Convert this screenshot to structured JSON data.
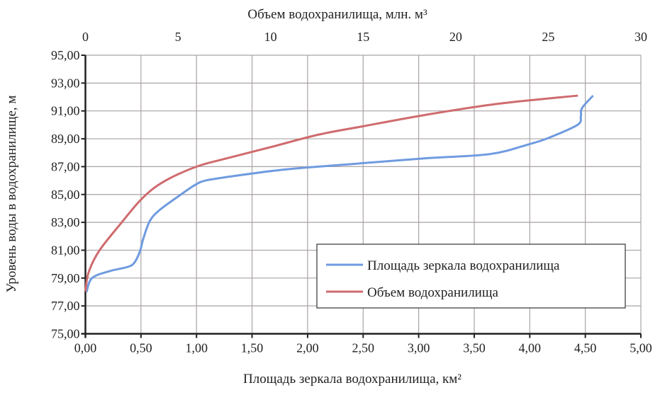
{
  "chart_data": {
    "type": "line",
    "xlabel_bottom": "Площадь зеркала водохранилища, км²",
    "xlabel_top": "Объем водохранилища, млн. м³",
    "ylabel": "Уровень воды в водохранилище, м",
    "xlim_bottom": [
      0,
      5
    ],
    "xlim_top": [
      0,
      30
    ],
    "ylim": [
      75,
      95
    ],
    "grid": true,
    "legend_position": "bottom-right",
    "x_ticks_bottom": [
      "0,00",
      "0,50",
      "1,00",
      "1,50",
      "2,00",
      "2,50",
      "3,00",
      "3,50",
      "4,00",
      "4,50",
      "5,00"
    ],
    "x_ticks_top": [
      "0",
      "5",
      "10",
      "15",
      "20",
      "25",
      "30"
    ],
    "y_ticks": [
      "75,00",
      "77,00",
      "79,00",
      "81,00",
      "83,00",
      "85,00",
      "87,00",
      "89,00",
      "91,00",
      "93,00",
      "95,00"
    ],
    "series": [
      {
        "name": "Площадь зеркала водохранилища",
        "axis": "bottom",
        "color": "#6f9be0",
        "points": [
          [
            0.01,
            78.0
          ],
          [
            0.06,
            79.0
          ],
          [
            0.22,
            79.5
          ],
          [
            0.38,
            79.8
          ],
          [
            0.44,
            80.1
          ],
          [
            0.49,
            80.9
          ],
          [
            0.52,
            81.8
          ],
          [
            0.58,
            83.1
          ],
          [
            0.67,
            83.9
          ],
          [
            0.86,
            85.0
          ],
          [
            0.99,
            85.7
          ],
          [
            1.08,
            86.0
          ],
          [
            1.27,
            86.25
          ],
          [
            1.8,
            86.8
          ],
          [
            2.42,
            87.2
          ],
          [
            3.06,
            87.6
          ],
          [
            3.64,
            87.9
          ],
          [
            3.99,
            88.6
          ],
          [
            4.18,
            89.1
          ],
          [
            4.43,
            90.0
          ],
          [
            4.46,
            90.6
          ],
          [
            4.47,
            91.2
          ],
          [
            4.57,
            92.1
          ]
        ]
      },
      {
        "name": "Объем водохранилища",
        "axis": "top",
        "color": "#cf6b6e",
        "points": [
          [
            0,
            78.05
          ],
          [
            0.17,
            79.4
          ],
          [
            0.74,
            80.95
          ],
          [
            1.9,
            82.9
          ],
          [
            3.05,
            84.7
          ],
          [
            4.2,
            85.9
          ],
          [
            6.0,
            87.0
          ],
          [
            7.65,
            87.6
          ],
          [
            10,
            88.4
          ],
          [
            12.6,
            89.3
          ],
          [
            15,
            89.9
          ],
          [
            18.3,
            90.7
          ],
          [
            22.2,
            91.5
          ],
          [
            26.6,
            92.1
          ]
        ]
      }
    ]
  }
}
